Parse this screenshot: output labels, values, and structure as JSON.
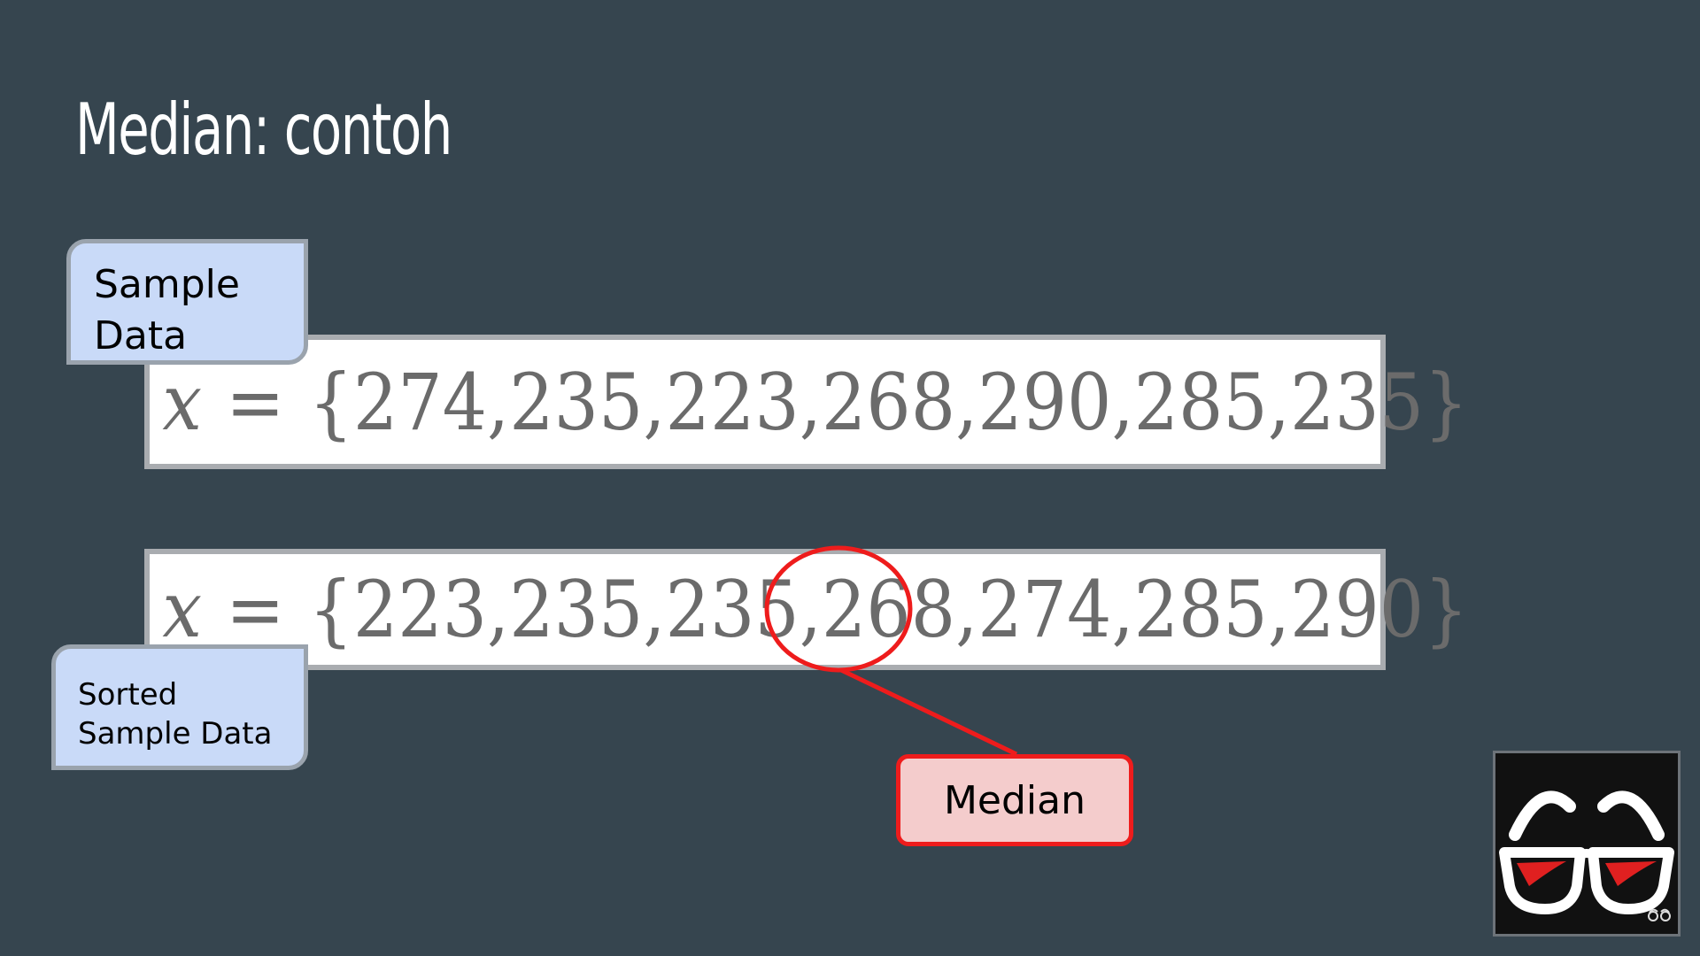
{
  "slide": {
    "title": "Median: contoh"
  },
  "sample": {
    "label_line1": "Sample",
    "label_line2": "Data",
    "variable": "x",
    "operator": "=",
    "open_brace": "{",
    "close_brace": "}",
    "values": [
      "274",
      "235",
      "223",
      "268",
      "290",
      "285",
      "235"
    ]
  },
  "sorted": {
    "label_line1": "Sorted",
    "label_line2": "Sample Data",
    "variable": "x",
    "operator": "=",
    "open_brace": "{",
    "close_brace": "}",
    "values": [
      "223",
      "235",
      "235",
      "268",
      "274",
      "285",
      "290"
    ],
    "median_index": 3
  },
  "median_label": "Median",
  "colors": {
    "background": "#36454f",
    "callout_fill": "#c9daf8",
    "median_fill": "#f4cccc",
    "highlight": "#ee1c1c"
  },
  "icons": {
    "channel_logo": "glasses-icon"
  }
}
